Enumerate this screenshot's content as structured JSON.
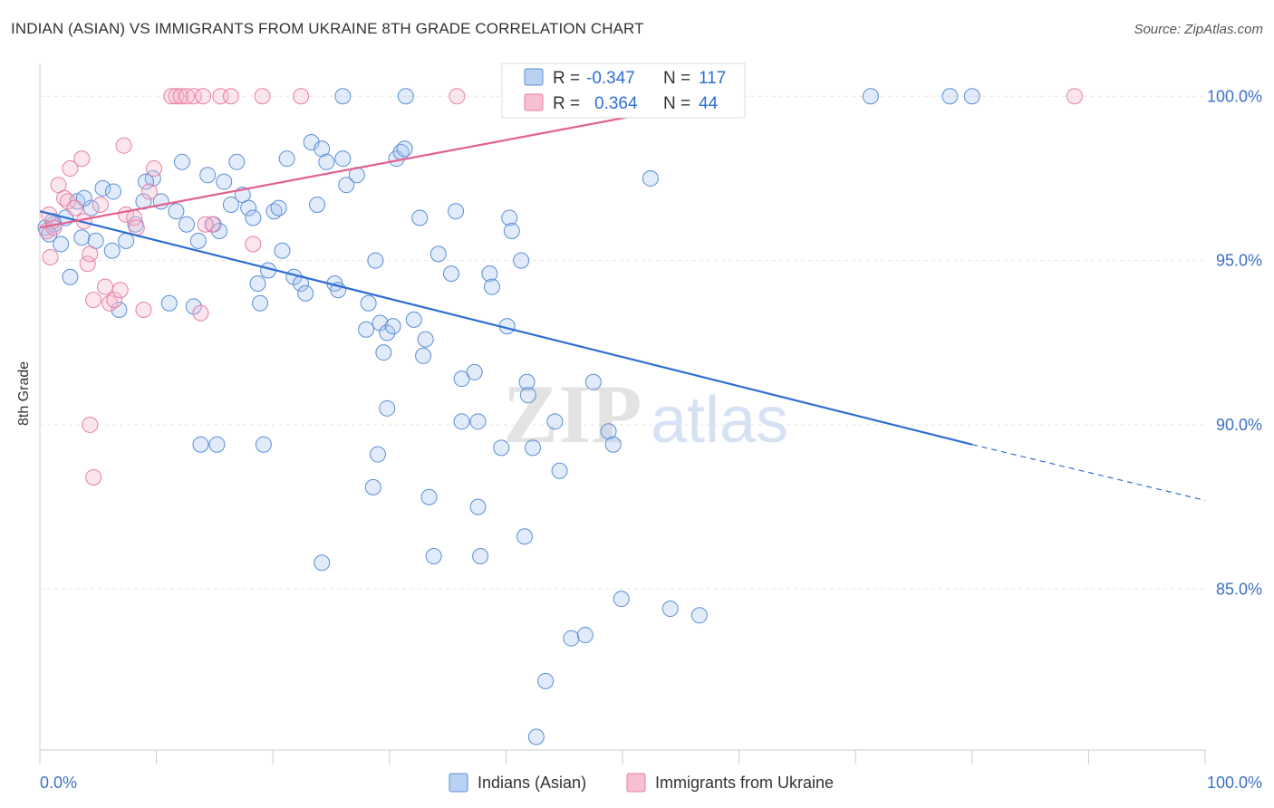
{
  "title": "INDIAN (ASIAN) VS IMMIGRANTS FROM UKRAINE 8TH GRADE CORRELATION CHART",
  "source": "Source: ZipAtlas.com",
  "watermark": {
    "zip": "ZIP",
    "atlas": "atlas"
  },
  "chart_data": {
    "type": "scatter",
    "title": "INDIAN (ASIAN) VS IMMIGRANTS FROM UKRAINE 8TH GRADE CORRELATION CHART",
    "xlabel": "",
    "ylabel": "8th Grade",
    "xlim": [
      0,
      100
    ],
    "ylim": [
      80.1,
      101.0
    ],
    "x_tick_labels": [
      "0.0%",
      "100.0%"
    ],
    "y_ticks": [
      {
        "value": 100.0,
        "label": "100.0%"
      },
      {
        "value": 95.0,
        "label": "95.0%"
      },
      {
        "value": 90.0,
        "label": "90.0%"
      },
      {
        "value": 85.0,
        "label": "85.0%"
      }
    ],
    "grid": true,
    "legend_top": [
      {
        "r_label": "R =",
        "r_value": "-0.347",
        "n_label": "N =",
        "n_value": "117",
        "color": "#5b8fd6",
        "fill": "#b9d2f2"
      },
      {
        "r_label": "R =",
        "r_value": "0.364",
        "n_label": "N =",
        "n_value": "44",
        "color": "#e87ea5",
        "fill": "#f7bfd2"
      }
    ],
    "legend_bottom": [
      "Indians (Asian)",
      "Immigrants from Ukraine"
    ],
    "series": [
      {
        "name": "Indians (Asian)",
        "color": "#5b8fd6",
        "trend": {
          "x0": 0,
          "y0": 96.5,
          "x1": 80,
          "y1": 89.4,
          "dash_to_x": 100,
          "dash_to_y": 87.7,
          "color": "#2e6fd0"
        },
        "points": [
          [
            0.5,
            96.0
          ],
          [
            0.8,
            95.8
          ],
          [
            1.2,
            96.1
          ],
          [
            1.8,
            95.5
          ],
          [
            2.2,
            96.3
          ],
          [
            2.6,
            94.5
          ],
          [
            3.2,
            96.8
          ],
          [
            3.6,
            95.7
          ],
          [
            4.4,
            96.6
          ],
          [
            4.8,
            95.6
          ],
          [
            5.4,
            97.2
          ],
          [
            6.2,
            95.3
          ],
          [
            6.8,
            93.5
          ],
          [
            7.4,
            95.6
          ],
          [
            8.2,
            96.1
          ],
          [
            8.9,
            96.8
          ],
          [
            9.7,
            97.5
          ],
          [
            10.4,
            96.8
          ],
          [
            11.1,
            93.7
          ],
          [
            11.7,
            96.5
          ],
          [
            12.2,
            98.0
          ],
          [
            12.6,
            96.1
          ],
          [
            13.2,
            93.6
          ],
          [
            13.6,
            95.6
          ],
          [
            14.4,
            97.6
          ],
          [
            14.9,
            96.1
          ],
          [
            15.4,
            95.9
          ],
          [
            15.8,
            97.4
          ],
          [
            16.4,
            96.7
          ],
          [
            16.9,
            98.0
          ],
          [
            17.4,
            97.0
          ],
          [
            17.9,
            96.6
          ],
          [
            18.3,
            96.3
          ],
          [
            18.7,
            94.3
          ],
          [
            18.9,
            93.7
          ],
          [
            19.6,
            94.7
          ],
          [
            20.1,
            96.5
          ],
          [
            20.5,
            96.6
          ],
          [
            20.8,
            95.3
          ],
          [
            21.2,
            98.1
          ],
          [
            21.8,
            94.5
          ],
          [
            22.4,
            94.3
          ],
          [
            22.8,
            94.0
          ],
          [
            23.3,
            98.6
          ],
          [
            23.8,
            96.7
          ],
          [
            24.2,
            98.4
          ],
          [
            24.6,
            98.0
          ],
          [
            25.3,
            94.3
          ],
          [
            25.6,
            94.1
          ],
          [
            26.0,
            98.1
          ],
          [
            26.3,
            97.3
          ],
          [
            27.2,
            97.6
          ],
          [
            28.0,
            92.9
          ],
          [
            28.2,
            93.7
          ],
          [
            28.8,
            95.0
          ],
          [
            29.2,
            93.1
          ],
          [
            29.5,
            92.2
          ],
          [
            29.8,
            92.8
          ],
          [
            30.3,
            93.0
          ],
          [
            30.6,
            98.1
          ],
          [
            31.0,
            98.3
          ],
          [
            31.3,
            98.4
          ],
          [
            32.1,
            93.2
          ],
          [
            32.6,
            96.3
          ],
          [
            32.9,
            92.1
          ],
          [
            33.1,
            92.6
          ],
          [
            34.2,
            95.2
          ],
          [
            35.3,
            94.6
          ],
          [
            35.7,
            96.5
          ],
          [
            36.2,
            91.4
          ],
          [
            37.3,
            91.6
          ],
          [
            38.6,
            94.6
          ],
          [
            38.8,
            94.2
          ],
          [
            40.1,
            93.0
          ],
          [
            40.3,
            96.3
          ],
          [
            40.5,
            95.9
          ],
          [
            41.3,
            95.0
          ],
          [
            41.8,
            91.3
          ],
          [
            41.9,
            90.9
          ],
          [
            44.2,
            90.1
          ],
          [
            44.6,
            88.6
          ],
          [
            47.5,
            91.3
          ],
          [
            48.8,
            89.8
          ],
          [
            49.2,
            89.4
          ],
          [
            52.4,
            97.5
          ],
          [
            13.8,
            89.4
          ],
          [
            15.2,
            89.4
          ],
          [
            19.2,
            89.4
          ],
          [
            29.0,
            89.1
          ],
          [
            29.8,
            90.5
          ],
          [
            36.2,
            90.1
          ],
          [
            37.6,
            90.1
          ],
          [
            39.6,
            89.3
          ],
          [
            42.3,
            89.3
          ],
          [
            28.6,
            88.1
          ],
          [
            33.4,
            87.8
          ],
          [
            37.6,
            87.5
          ],
          [
            41.6,
            86.6
          ],
          [
            24.2,
            85.8
          ],
          [
            33.8,
            86.0
          ],
          [
            37.8,
            86.0
          ],
          [
            49.9,
            84.7
          ],
          [
            54.1,
            84.4
          ],
          [
            56.6,
            84.2
          ],
          [
            45.6,
            83.5
          ],
          [
            46.8,
            83.6
          ],
          [
            43.4,
            82.2
          ],
          [
            42.6,
            80.5
          ],
          [
            26.0,
            100.0
          ],
          [
            31.4,
            100.0
          ],
          [
            46.4,
            100.0
          ],
          [
            47.0,
            100.0
          ],
          [
            71.3,
            100.0
          ],
          [
            78.1,
            100.0
          ],
          [
            80.0,
            100.0
          ],
          [
            3.8,
            96.9
          ],
          [
            6.3,
            97.1
          ],
          [
            9.1,
            97.4
          ],
          [
            1.1,
            96.2
          ]
        ]
      },
      {
        "name": "Immigrants from Ukraine",
        "color": "#e87ea5",
        "trend": {
          "x0": 0,
          "y0": 96.0,
          "x1": 60,
          "y1": 100.0,
          "color": "#e4608e"
        },
        "points": [
          [
            0.6,
            95.9
          ],
          [
            0.9,
            95.1
          ],
          [
            1.2,
            96.0
          ],
          [
            1.6,
            97.3
          ],
          [
            2.1,
            96.9
          ],
          [
            2.4,
            96.8
          ],
          [
            2.6,
            97.8
          ],
          [
            3.0,
            96.6
          ],
          [
            3.6,
            98.1
          ],
          [
            3.8,
            96.2
          ],
          [
            4.1,
            94.9
          ],
          [
            4.3,
            95.2
          ],
          [
            4.6,
            93.8
          ],
          [
            5.2,
            96.7
          ],
          [
            5.6,
            94.2
          ],
          [
            6.0,
            93.7
          ],
          [
            6.4,
            93.8
          ],
          [
            6.9,
            94.1
          ],
          [
            7.2,
            98.5
          ],
          [
            7.4,
            96.4
          ],
          [
            8.1,
            96.3
          ],
          [
            8.3,
            96.0
          ],
          [
            8.9,
            93.5
          ],
          [
            9.4,
            97.1
          ],
          [
            9.8,
            97.8
          ],
          [
            11.3,
            100.0
          ],
          [
            11.7,
            100.0
          ],
          [
            12.1,
            100.0
          ],
          [
            12.6,
            100.0
          ],
          [
            13.2,
            100.0
          ],
          [
            14.0,
            100.0
          ],
          [
            14.8,
            96.1
          ],
          [
            13.8,
            93.4
          ],
          [
            14.2,
            96.1
          ],
          [
            15.5,
            100.0
          ],
          [
            16.4,
            100.0
          ],
          [
            18.3,
            95.5
          ],
          [
            19.1,
            100.0
          ],
          [
            22.4,
            100.0
          ],
          [
            35.8,
            100.0
          ],
          [
            88.8,
            100.0
          ],
          [
            4.3,
            90.0
          ],
          [
            4.6,
            88.4
          ],
          [
            0.8,
            96.4
          ]
        ]
      }
    ]
  }
}
